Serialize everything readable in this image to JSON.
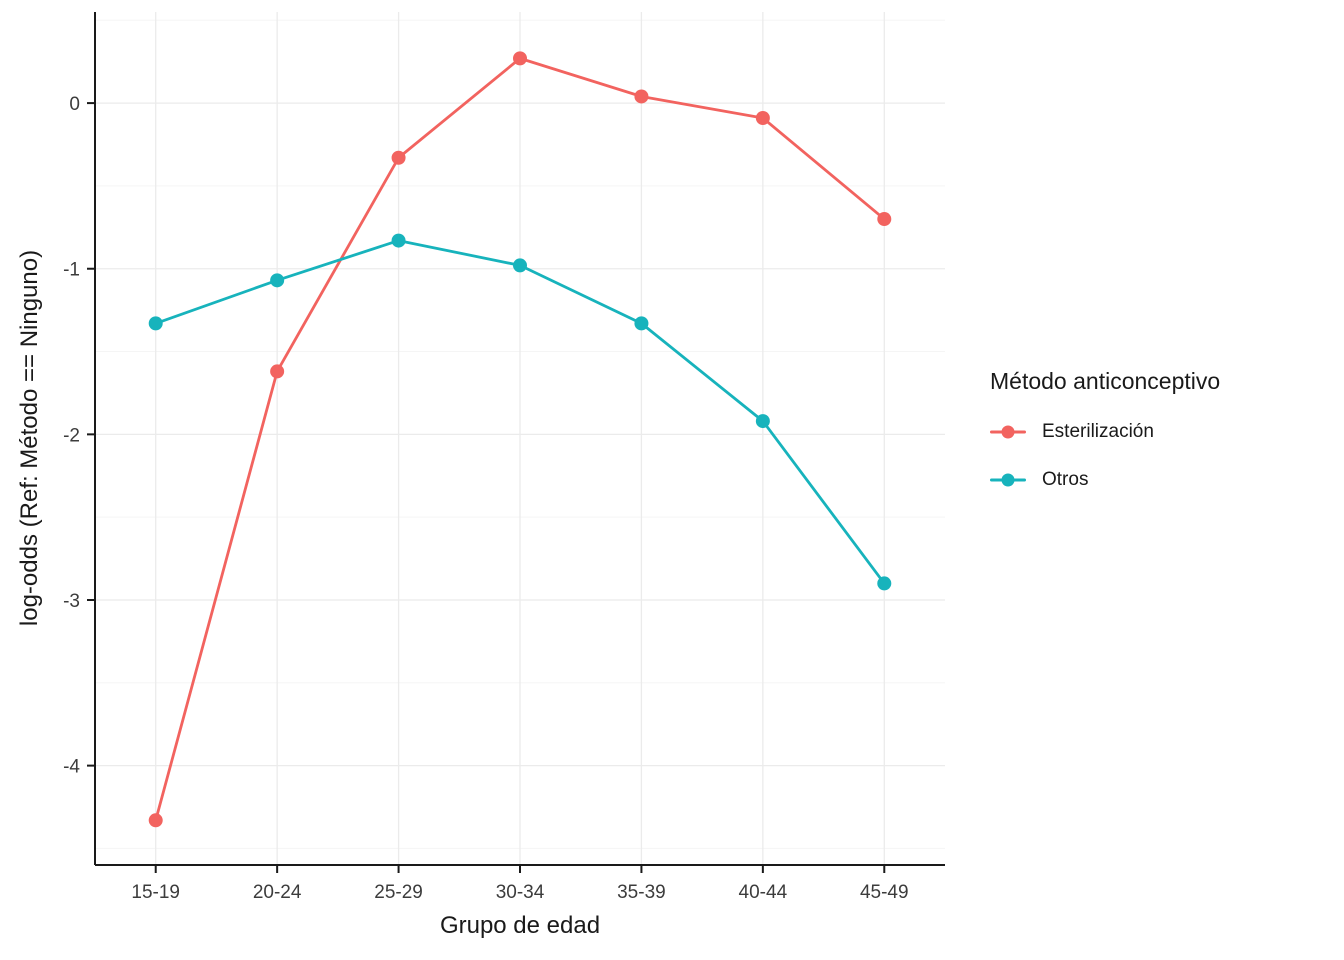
{
  "chart_data": {
    "type": "line",
    "title": "",
    "xlabel": "Grupo de edad",
    "ylabel": "log-odds (Ref: Método == Ninguno)",
    "legend_title": "Método anticonceptivo",
    "legend_position": "right",
    "categories": [
      "15-19",
      "20-24",
      "25-29",
      "30-34",
      "35-39",
      "40-44",
      "45-49"
    ],
    "series": [
      {
        "name": "Esterilización",
        "color": "#F2635F",
        "values": [
          -4.33,
          -1.62,
          -0.33,
          0.27,
          0.04,
          -0.09,
          -0.7
        ]
      },
      {
        "name": "Otros",
        "color": "#17B3BC",
        "values": [
          -1.33,
          -1.07,
          -0.83,
          -0.98,
          -1.33,
          -1.92,
          -2.9
        ]
      }
    ],
    "ylim": [
      -4.6,
      0.55
    ],
    "yticks": [
      0,
      -1,
      -2,
      -3,
      -4
    ],
    "grid": {
      "show": true,
      "major_color": "#EBEBEB",
      "minor_color": "#F5F5F5"
    },
    "axis_color": "#1a1a1a",
    "tick_label_color": "#3c3c3c",
    "marker_radius": 7,
    "line_width": 2.8
  }
}
